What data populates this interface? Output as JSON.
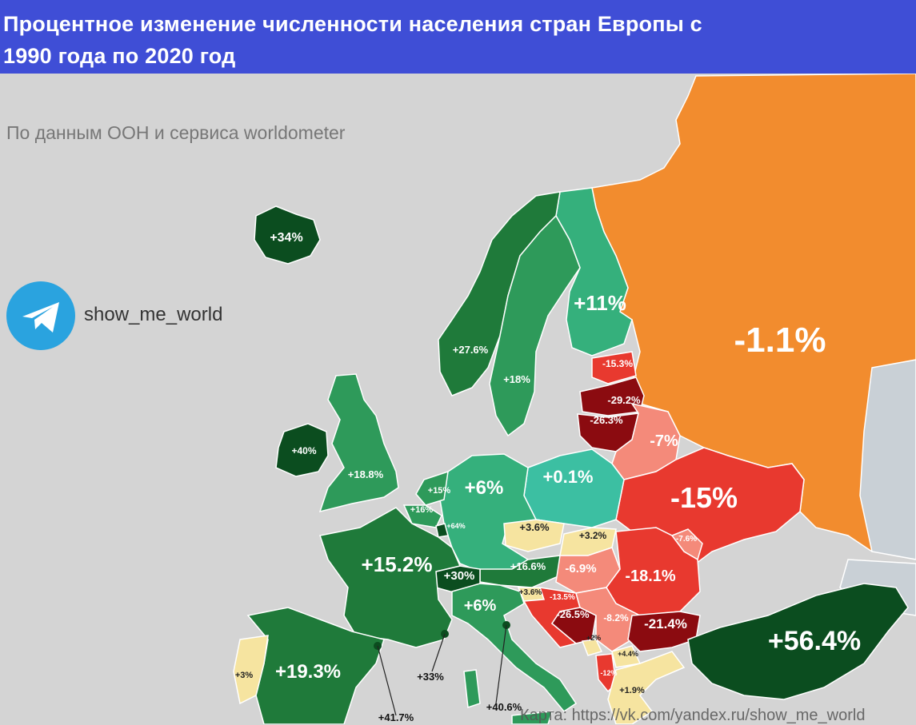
{
  "title": "Процентное изменение численности населения стран Европы с\n1990 года по 2020 год",
  "source_note": "По данным ООН и сервиса worldometer",
  "telegram": {
    "icon": "telegram-icon",
    "handle": "show_me_world"
  },
  "credit": "Карта: https://vk.com/yandex.ru/show_me_world",
  "colors": {
    "background": "#d4d4d4",
    "title_bar": "#3f4ed6",
    "sea": "#d4d4d4",
    "strong_growth": "#0b4d1f",
    "growth": "#1f7a3a",
    "moderate_growth": "#2e9a5a",
    "light_growth": "#35b07c",
    "small_growth": "#3cbfa2",
    "near_zero": "#f6e4a0",
    "light_decline": "#f48a7a",
    "decline": "#e8392f",
    "strong_decline": "#8b0b10",
    "russia": "#f28c2e"
  },
  "countries": [
    {
      "id": "iceland",
      "label": "+34%"
    },
    {
      "id": "norway",
      "label": "+27.6%"
    },
    {
      "id": "sweden",
      "label": "+18%"
    },
    {
      "id": "finland",
      "label": "+11%"
    },
    {
      "id": "russia",
      "label": "-1.1%"
    },
    {
      "id": "estonia",
      "label": "-15.3%"
    },
    {
      "id": "latvia",
      "label": "-29.2%"
    },
    {
      "id": "lithuania",
      "label": "-26.3%"
    },
    {
      "id": "belarus",
      "label": "-7%"
    },
    {
      "id": "ukraine",
      "label": "-15%"
    },
    {
      "id": "ireland",
      "label": "+40%"
    },
    {
      "id": "uk",
      "label": "+18.8%"
    },
    {
      "id": "netherlands",
      "label": "+15%"
    },
    {
      "id": "belgium",
      "label": "+16%"
    },
    {
      "id": "luxembourg",
      "label": "+64%"
    },
    {
      "id": "germany",
      "label": "+6%"
    },
    {
      "id": "poland",
      "label": "+0.1%"
    },
    {
      "id": "czechia",
      "label": "+3.6%"
    },
    {
      "id": "slovakia",
      "label": "+3.2%"
    },
    {
      "id": "moldova",
      "label": "-7.6%"
    },
    {
      "id": "france",
      "label": "+15.2%"
    },
    {
      "id": "switzerland",
      "label": "+30%"
    },
    {
      "id": "austria",
      "label": "+16.6%"
    },
    {
      "id": "hungary",
      "label": "-6.9%"
    },
    {
      "id": "romania",
      "label": "-18.1%"
    },
    {
      "id": "slovenia",
      "label": "+3.6%"
    },
    {
      "id": "croatia",
      "label": "-13.5%"
    },
    {
      "id": "bosnia",
      "label": "-26.5%"
    },
    {
      "id": "serbia",
      "label": "-8.2%"
    },
    {
      "id": "bulgaria",
      "label": "-21.4%"
    },
    {
      "id": "italy",
      "label": "+6%"
    },
    {
      "id": "montenegro",
      "label": "+2%"
    },
    {
      "id": "north-macedonia",
      "label": "+4.4%"
    },
    {
      "id": "albania",
      "label": "-12%"
    },
    {
      "id": "greece",
      "label": "+1.9%"
    },
    {
      "id": "turkey",
      "label": "+56.4%"
    },
    {
      "id": "portugal",
      "label": "+3%"
    },
    {
      "id": "spain",
      "label": "+19.3%"
    },
    {
      "id": "monaco",
      "label": "+33%"
    },
    {
      "id": "andorra",
      "label": "+41.7%"
    },
    {
      "id": "san-marino",
      "label": "+40.6%"
    }
  ]
}
